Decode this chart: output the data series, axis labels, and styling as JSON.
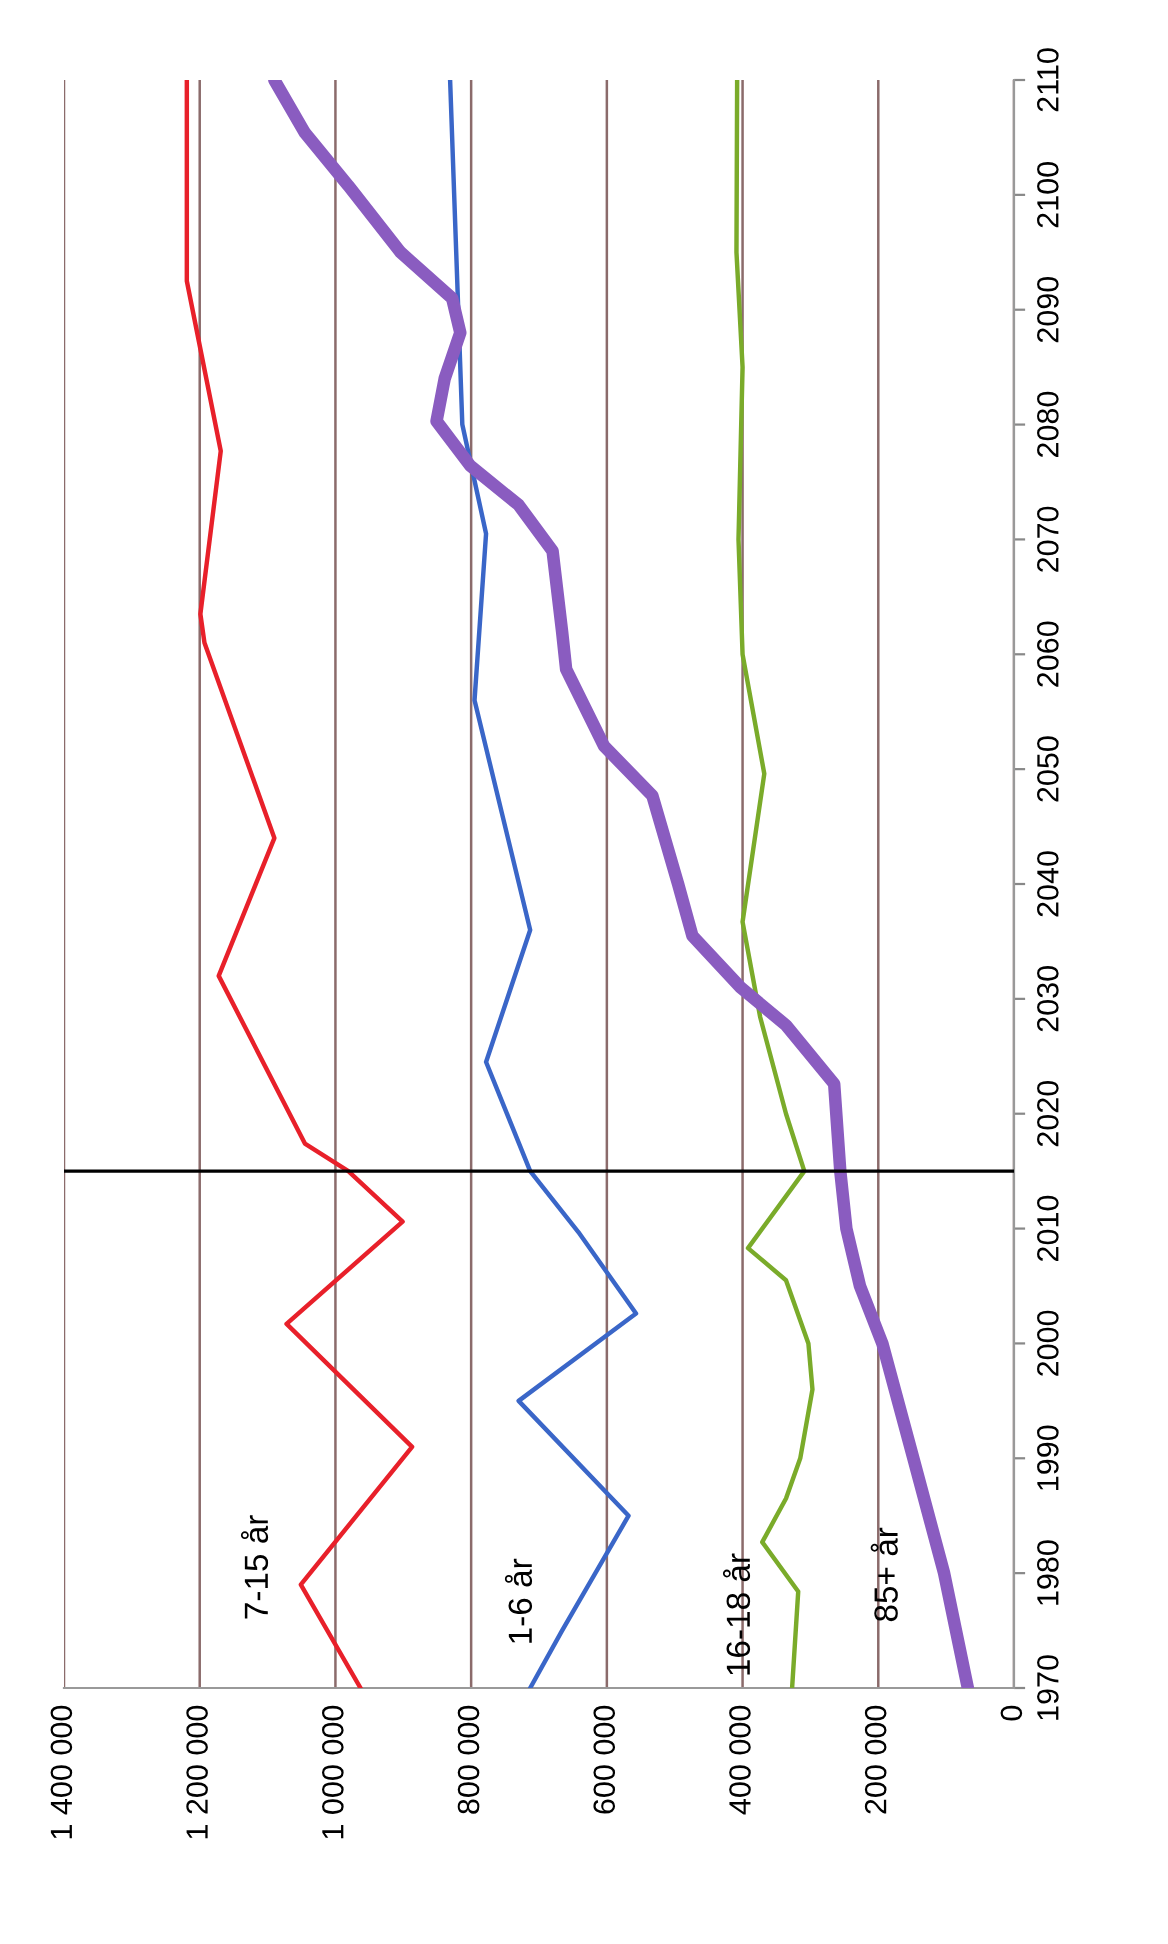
{
  "chart_data": {
    "type": "line",
    "ylim": [
      1970,
      2110
    ],
    "yticks": [
      1970,
      1980,
      1990,
      2000,
      2010,
      2020,
      2030,
      2040,
      2050,
      2060,
      2070,
      2080,
      2090,
      2100,
      2110
    ],
    "xlim": [
      1400000,
      0
    ],
    "xticks": [
      0,
      {
        "value": 200000,
        "label": "200 000"
      },
      {
        "value": 400000,
        "label": "400 000"
      },
      {
        "value": 600000,
        "label": "600 000"
      },
      {
        "value": 800000,
        "label": "800 000"
      },
      {
        "value": 1000000,
        "label": "1 000 000"
      },
      {
        "value": 1200000,
        "label": "1 200 000"
      },
      {
        "value": 1400000,
        "label": "1 400 000"
      }
    ],
    "grid": "x",
    "legend": false,
    "ref_lines": [
      {
        "axis": "y",
        "value": 2015,
        "color": "#000000"
      }
    ],
    "series": [
      {
        "name": "7-15 år",
        "color": "#e8202a",
        "values": [
          1970,
          1979,
          1991,
          2001.7,
          2010.6,
          2015,
          2017.4,
          2032,
          2044,
          2061,
          2063.5,
          2077.7,
          2092.5,
          2110
        ],
        "x": [
          963000,
          1051000,
          887000,
          1072000,
          901000,
          981000,
          1045000,
          1172000,
          1090000,
          1193000,
          1199000,
          1169000,
          1219000,
          1219000
        ]
      },
      {
        "name": "1-6 år",
        "color": "#3a66c8",
        "values": [
          1970,
          1975,
          1985,
          1995,
          2002.6,
          2009.7,
          2015,
          2024.5,
          2036,
          2056,
          2070.5,
          2080,
          2090,
          2110
        ],
        "x": [
          713000,
          666000,
          568000,
          730000,
          557000,
          642000,
          713000,
          778000,
          713000,
          795000,
          778000,
          813000,
          819000,
          831000
        ]
      },
      {
        "name": "16-18 år",
        "color": "#7aab2a",
        "values": [
          1970,
          1978.4,
          1982.7,
          1986.5,
          1990,
          1996,
          2000,
          2005.5,
          2008.3,
          2015,
          2020,
          2028.4,
          2036.7,
          2049.6,
          2060,
          2070,
          2085,
          2095,
          2110
        ],
        "x": [
          327000,
          318000,
          371000,
          336000,
          315000,
          297000,
          303000,
          336000,
          392000,
          309000,
          336000,
          374000,
          400000,
          368000,
          400000,
          406000,
          400000,
          409000,
          408000
        ]
      },
      {
        "name": "85+ år",
        "color": "#8a5cc0",
        "values": [
          1970,
          1980,
          1989.7,
          2000,
          2005,
          2010,
          2015,
          2022.6,
          2027.7,
          2031,
          2035.5,
          2040,
          2047.7,
          2052,
          2058.7,
          2062,
          2069,
          2073,
          2076.4,
          2080.3,
          2084,
          2088,
          2091,
          2095,
          2100.8,
          2105.4,
          2110
        ],
        "x": [
          68000,
          103000,
          147000,
          194000,
          227000,
          247000,
          256000,
          265000,
          336000,
          403000,
          474000,
          495000,
          533000,
          604000,
          660000,
          666000,
          680000,
          730000,
          801000,
          851000,
          839000,
          816000,
          828000,
          904000,
          981000,
          1045000,
          1090000
        ]
      }
    ]
  }
}
